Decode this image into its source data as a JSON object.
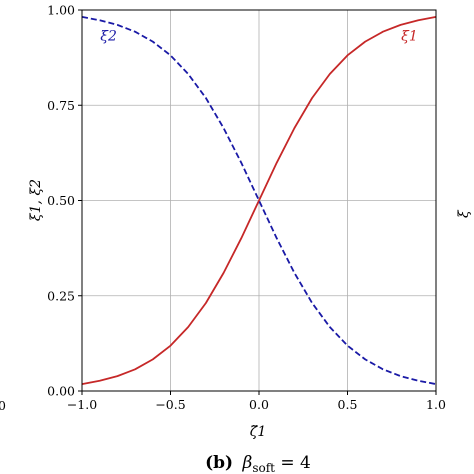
{
  "chart_data": {
    "type": "line",
    "xlabel": "ζ̃1",
    "ylabel": "ξ1, ξ2",
    "xlim": [
      -1.0,
      1.0
    ],
    "ylim": [
      0.0,
      1.0
    ],
    "grid": true,
    "x_ticks": [
      -1.0,
      -0.5,
      0.0,
      0.5,
      1.0
    ],
    "x_tick_labels": [
      "−1.0",
      "−0.5",
      "0.0",
      "0.5",
      "1.0"
    ],
    "y_ticks": [
      0.0,
      0.25,
      0.5,
      0.75,
      1.0
    ],
    "y_tick_labels": [
      "0.00",
      "0.25",
      "0.50",
      "0.75",
      "1.00"
    ],
    "series": [
      {
        "name": "ξ1",
        "color": "#c62828",
        "style": "solid",
        "x": [
          -1.0,
          -0.9,
          -0.8,
          -0.7,
          -0.6,
          -0.5,
          -0.4,
          -0.3,
          -0.2,
          -0.1,
          0.0,
          0.1,
          0.2,
          0.3,
          0.4,
          0.5,
          0.6,
          0.7,
          0.8,
          0.9,
          1.0
        ],
        "y": [
          0.018,
          0.027,
          0.039,
          0.057,
          0.083,
          0.119,
          0.168,
          0.231,
          0.31,
          0.401,
          0.5,
          0.599,
          0.69,
          0.769,
          0.832,
          0.881,
          0.917,
          0.943,
          0.961,
          0.973,
          0.982
        ]
      },
      {
        "name": "ξ2",
        "color": "#1a1aa6",
        "style": "dashed",
        "x": [
          -1.0,
          -0.9,
          -0.8,
          -0.7,
          -0.6,
          -0.5,
          -0.4,
          -0.3,
          -0.2,
          -0.1,
          0.0,
          0.1,
          0.2,
          0.3,
          0.4,
          0.5,
          0.6,
          0.7,
          0.8,
          0.9,
          1.0
        ],
        "y": [
          0.982,
          0.973,
          0.961,
          0.943,
          0.917,
          0.881,
          0.832,
          0.769,
          0.69,
          0.599,
          0.5,
          0.401,
          0.31,
          0.231,
          0.168,
          0.119,
          0.083,
          0.057,
          0.039,
          0.027,
          0.018
        ]
      }
    ],
    "annotations": [
      {
        "text": "ξ2",
        "x": -0.85,
        "y": 0.92,
        "color": "#1a1aa6"
      },
      {
        "text": "ξ1",
        "x": 0.85,
        "y": 0.92,
        "color": "#c62828"
      }
    ],
    "edge_fragments": {
      "left_tick": "0",
      "right_label": "ξ"
    },
    "caption": {
      "label": "(b)",
      "symbol": "β",
      "subscript": "soft",
      "rest": " = 4"
    }
  }
}
